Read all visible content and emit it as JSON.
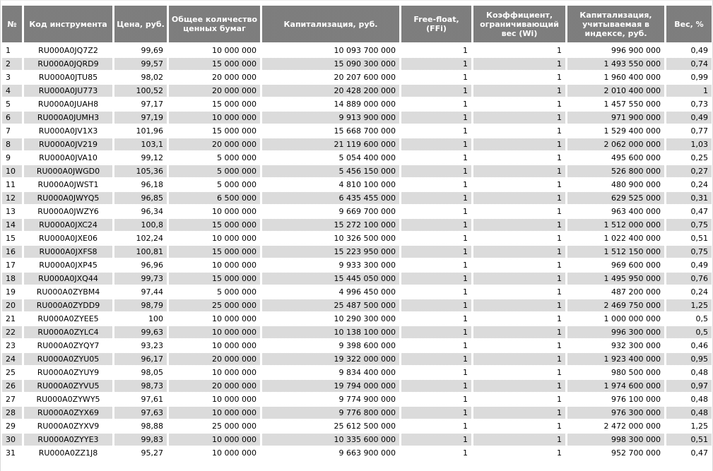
{
  "colors": {
    "header_bg": "#808080",
    "header_text": "#ffffff",
    "stripe_bg": "#dcdcdc",
    "grid": "#ffffff",
    "body_text": "#000000"
  },
  "table": {
    "columns": [
      {
        "key": "num",
        "label": "№"
      },
      {
        "key": "code",
        "label": "Код инструмента"
      },
      {
        "key": "price",
        "label": "Цена, руб."
      },
      {
        "key": "qty",
        "label": "Общее количество ценных бумаг"
      },
      {
        "key": "cap",
        "label": "Капитализация, руб."
      },
      {
        "key": "ff",
        "label": "Free-float, (FFi)"
      },
      {
        "key": "wi",
        "label": "Коэффициент, ограничивающий вес (Wi)"
      },
      {
        "key": "capidx",
        "label": "Капитализация, учитываемая в индексе, руб."
      },
      {
        "key": "weight",
        "label": "Вес, %"
      }
    ],
    "rows": [
      [
        "1",
        "RU000A0JQ7Z2",
        "99,69",
        "10 000 000",
        "10 093 700 000",
        "1",
        "1",
        "996 900 000",
        "0,49"
      ],
      [
        "2",
        "RU000A0JQRD9",
        "99,57",
        "15 000 000",
        "15 090 300 000",
        "1",
        "1",
        "1 493 550 000",
        "0,74"
      ],
      [
        "3",
        "RU000A0JTU85",
        "98,02",
        "20 000 000",
        "20 207 600 000",
        "1",
        "1",
        "1 960 400 000",
        "0,99"
      ],
      [
        "4",
        "RU000A0JU773",
        "100,52",
        "20 000 000",
        "20 428 200 000",
        "1",
        "1",
        "2 010 400 000",
        "1"
      ],
      [
        "5",
        "RU000A0JUAH8",
        "97,17",
        "15 000 000",
        "14 889 000 000",
        "1",
        "1",
        "1 457 550 000",
        "0,73"
      ],
      [
        "6",
        "RU000A0JUMH3",
        "97,19",
        "10 000 000",
        "9 913 900 000",
        "1",
        "1",
        "971 900 000",
        "0,49"
      ],
      [
        "7",
        "RU000A0JV1X3",
        "101,96",
        "15 000 000",
        "15 668 700 000",
        "1",
        "1",
        "1 529 400 000",
        "0,77"
      ],
      [
        "8",
        "RU000A0JV219",
        "103,1",
        "20 000 000",
        "21 119 600 000",
        "1",
        "1",
        "2 062 000 000",
        "1,03"
      ],
      [
        "9",
        "RU000A0JVA10",
        "99,12",
        "5 000 000",
        "5 054 400 000",
        "1",
        "1",
        "495 600 000",
        "0,25"
      ],
      [
        "10",
        "RU000A0JWGD0",
        "105,36",
        "5 000 000",
        "5 456 150 000",
        "1",
        "1",
        "526 800 000",
        "0,27"
      ],
      [
        "11",
        "RU000A0JWST1",
        "96,18",
        "5 000 000",
        "4 810 100 000",
        "1",
        "1",
        "480 900 000",
        "0,24"
      ],
      [
        "12",
        "RU000A0JWYQ5",
        "96,85",
        "6 500 000",
        "6 435 455 000",
        "1",
        "1",
        "629 525 000",
        "0,31"
      ],
      [
        "13",
        "RU000A0JWZY6",
        "96,34",
        "10 000 000",
        "9 669 700 000",
        "1",
        "1",
        "963 400 000",
        "0,47"
      ],
      [
        "14",
        "RU000A0JXC24",
        "100,8",
        "15 000 000",
        "15 272 100 000",
        "1",
        "1",
        "1 512 000 000",
        "0,75"
      ],
      [
        "15",
        "RU000A0JXE06",
        "102,24",
        "10 000 000",
        "10 326 500 000",
        "1",
        "1",
        "1 022 400 000",
        "0,51"
      ],
      [
        "16",
        "RU000A0JXFS8",
        "100,81",
        "15 000 000",
        "15 223 950 000",
        "1",
        "1",
        "1 512 150 000",
        "0,75"
      ],
      [
        "17",
        "RU000A0JXP45",
        "96,96",
        "10 000 000",
        "9 933 300 000",
        "1",
        "1",
        "969 600 000",
        "0,49"
      ],
      [
        "18",
        "RU000A0JXQ44",
        "99,73",
        "15 000 000",
        "15 445 050 000",
        "1",
        "1",
        "1 495 950 000",
        "0,76"
      ],
      [
        "19",
        "RU000A0ZYBM4",
        "97,44",
        "5 000 000",
        "4 996 450 000",
        "1",
        "1",
        "487 200 000",
        "0,24"
      ],
      [
        "20",
        "RU000A0ZYDD9",
        "98,79",
        "25 000 000",
        "25 487 500 000",
        "1",
        "1",
        "2 469 750 000",
        "1,25"
      ],
      [
        "21",
        "RU000A0ZYEE5",
        "100",
        "10 000 000",
        "10 290 300 000",
        "1",
        "1",
        "1 000 000 000",
        "0,5"
      ],
      [
        "22",
        "RU000A0ZYLC4",
        "99,63",
        "10 000 000",
        "10 138 100 000",
        "1",
        "1",
        "996 300 000",
        "0,5"
      ],
      [
        "23",
        "RU000A0ZYQY7",
        "93,23",
        "10 000 000",
        "9 398 600 000",
        "1",
        "1",
        "932 300 000",
        "0,46"
      ],
      [
        "24",
        "RU000A0ZYU05",
        "96,17",
        "20 000 000",
        "19 322 000 000",
        "1",
        "1",
        "1 923 400 000",
        "0,95"
      ],
      [
        "25",
        "RU000A0ZYUY9",
        "98,05",
        "10 000 000",
        "9 834 400 000",
        "1",
        "1",
        "980 500 000",
        "0,48"
      ],
      [
        "26",
        "RU000A0ZYVU5",
        "98,73",
        "20 000 000",
        "19 794 000 000",
        "1",
        "1",
        "1 974 600 000",
        "0,97"
      ],
      [
        "27",
        "RU000A0ZYWY5",
        "97,61",
        "10 000 000",
        "9 774 900 000",
        "1",
        "1",
        "976 100 000",
        "0,48"
      ],
      [
        "28",
        "RU000A0ZYX69",
        "97,63",
        "10 000 000",
        "9 776 800 000",
        "1",
        "1",
        "976 300 000",
        "0,48"
      ],
      [
        "29",
        "RU000A0ZYXV9",
        "98,88",
        "25 000 000",
        "25 612 500 000",
        "1",
        "1",
        "2 472 000 000",
        "1,25"
      ],
      [
        "30",
        "RU000A0ZYYE3",
        "99,83",
        "10 000 000",
        "10 335 600 000",
        "1",
        "1",
        "998 300 000",
        "0,51"
      ],
      [
        "31",
        "RU000A0ZZ1J8",
        "95,27",
        "10 000 000",
        "9 663 900 000",
        "1",
        "1",
        "952 700 000",
        "0,47"
      ]
    ]
  }
}
